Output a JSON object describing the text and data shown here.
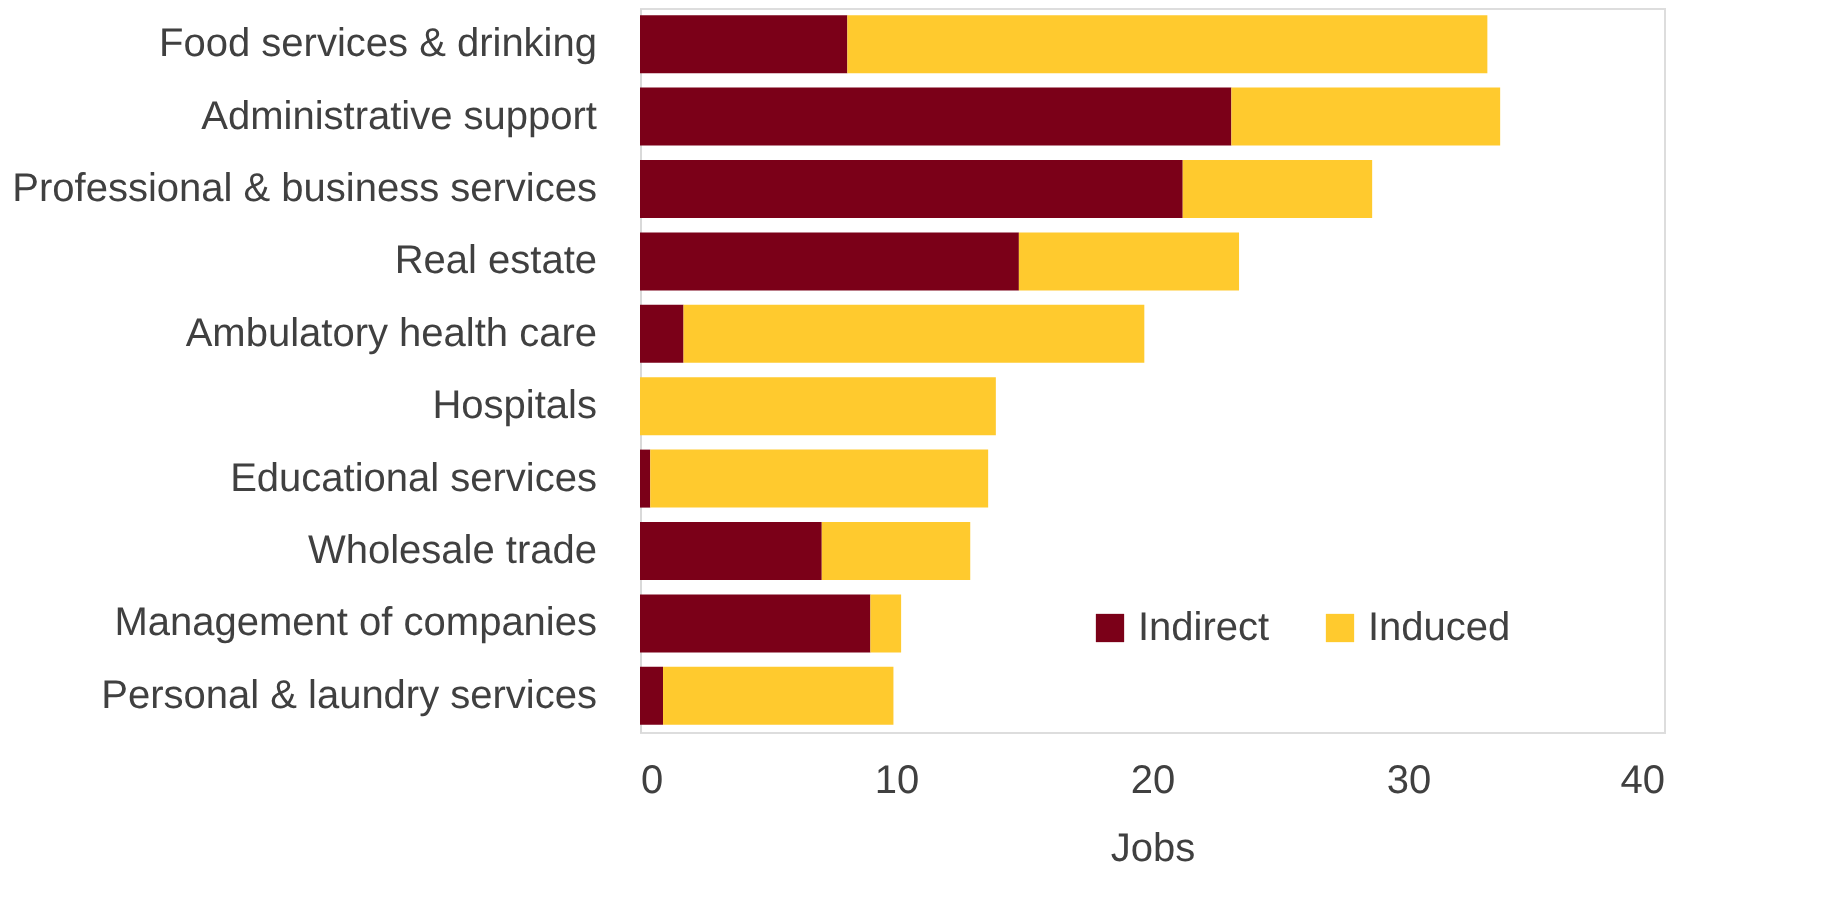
{
  "chart_data": {
    "type": "bar",
    "orientation": "horizontal",
    "stacked": true,
    "xlabel": "Jobs",
    "categories": [
      "Food services & drinking",
      "Administrative support",
      "Professional & business services",
      "Real estate",
      "Ambulatory health care",
      "Hospitals",
      "Educational services",
      "Wholesale trade",
      "Management of companies",
      "Personal & laundry services"
    ],
    "series": [
      {
        "name": "Indirect",
        "color": "#7b0018",
        "values": [
          8.1,
          23.1,
          21.2,
          14.8,
          1.7,
          0,
          0.4,
          7.1,
          9.0,
          0.9
        ]
      },
      {
        "name": "Induced",
        "color": "#ffca2e",
        "values": [
          25.0,
          10.5,
          7.4,
          8.6,
          18.0,
          13.9,
          13.2,
          5.8,
          1.2,
          9.0
        ]
      }
    ],
    "xlim": [
      0,
      40
    ],
    "xticks": [
      0,
      10,
      20,
      30,
      40
    ],
    "grid": false,
    "legend": "bottom right"
  }
}
